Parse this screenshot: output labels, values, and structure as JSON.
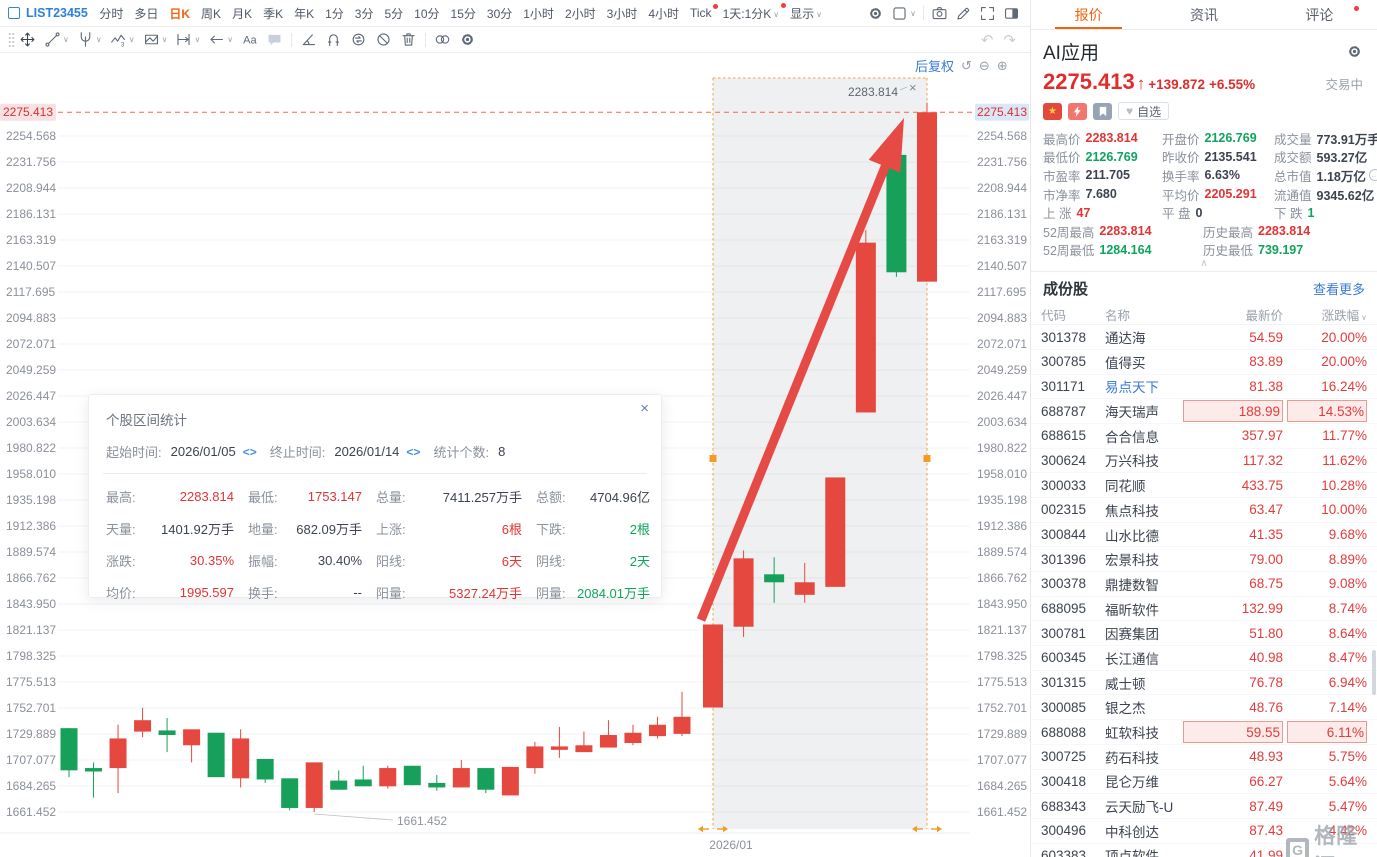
{
  "toolbar": {
    "symbol": "LIST23455",
    "timeframes": [
      {
        "label": "分时"
      },
      {
        "label": "多日"
      },
      {
        "label": "日K",
        "active": true
      },
      {
        "label": "周K"
      },
      {
        "label": "月K"
      },
      {
        "label": "季K"
      },
      {
        "label": "年K"
      },
      {
        "label": "1分"
      },
      {
        "label": "3分"
      },
      {
        "label": "5分"
      },
      {
        "label": "10分"
      },
      {
        "label": "15分"
      },
      {
        "label": "30分"
      },
      {
        "label": "1小时"
      },
      {
        "label": "2小时"
      },
      {
        "label": "3小时"
      },
      {
        "label": "4小时"
      },
      {
        "label": "Tick",
        "dot": true
      },
      {
        "label": "1天:1分K",
        "dot": true,
        "caret": true
      },
      {
        "label": "显示",
        "caret": true
      }
    ],
    "right_icons": [
      "settings",
      "layout",
      "divider",
      "camera",
      "edit",
      "fullscreen",
      "panel-right"
    ]
  },
  "drawbar": {
    "tools": [
      {
        "name": "move"
      },
      {
        "name": "trendline",
        "caret": true
      },
      {
        "name": "pitchfork",
        "caret": true
      },
      {
        "name": "wave",
        "caret": true
      },
      {
        "name": "pattern",
        "caret": true
      },
      {
        "name": "measure",
        "caret": true
      },
      {
        "name": "arrow-left",
        "caret": true
      },
      {
        "name": "text"
      },
      {
        "name": "comment"
      },
      {
        "name": "divider"
      },
      {
        "name": "angle"
      },
      {
        "name": "magnet"
      },
      {
        "name": "cycle"
      },
      {
        "name": "ban"
      },
      {
        "name": "trash"
      },
      {
        "name": "divider"
      },
      {
        "name": "rings"
      },
      {
        "name": "settings"
      }
    ]
  },
  "chart": {
    "adjust_label": "后复权",
    "current_price": "2275.413",
    "axis_ticks": [
      "2254.568",
      "2231.756",
      "2208.944",
      "2186.131",
      "2163.319",
      "2140.507",
      "2117.695",
      "2094.883",
      "2072.071",
      "2049.259",
      "2026.447",
      "2003.634",
      "1980.822",
      "1958.010",
      "1935.198",
      "1912.386",
      "1889.574",
      "1866.762",
      "1843.950",
      "1821.137",
      "1798.325",
      "1775.513",
      "1752.701",
      "1729.889",
      "1707.077",
      "1684.265",
      "1661.452"
    ],
    "colors": {
      "up": "#e5483f",
      "down": "#17a05a",
      "accent": "#f59b25",
      "price_line": "#f4694a"
    },
    "candles": [
      [
        1735,
        1735,
        1692,
        1698
      ],
      [
        1700,
        1705,
        1674,
        1697
      ],
      [
        1700,
        1738,
        1678,
        1726
      ],
      [
        1732,
        1753,
        1727,
        1742
      ],
      [
        1733,
        1744,
        1714,
        1729
      ],
      [
        1720,
        1734,
        1705,
        1734
      ],
      [
        1731,
        1731,
        1692,
        1692
      ],
      [
        1691,
        1734,
        1683,
        1726
      ],
      [
        1708,
        1708,
        1687,
        1690
      ],
      [
        1691,
        1691,
        1663,
        1665
      ],
      [
        1665,
        1705,
        1661.452,
        1705
      ],
      [
        1689,
        1698,
        1681,
        1681
      ],
      [
        1690,
        1702,
        1684,
        1684
      ],
      [
        1684,
        1702,
        1682,
        1700
      ],
      [
        1702,
        1702,
        1685,
        1685
      ],
      [
        1687,
        1694,
        1680,
        1683
      ],
      [
        1683,
        1707,
        1683,
        1700
      ],
      [
        1700,
        1700,
        1678,
        1681
      ],
      [
        1676,
        1701,
        1676,
        1701
      ],
      [
        1700,
        1723,
        1695,
        1719
      ],
      [
        1716,
        1736,
        1709,
        1719
      ],
      [
        1714,
        1732,
        1714,
        1720
      ],
      [
        1718,
        1742,
        1718,
        1729
      ],
      [
        1722,
        1738,
        1720,
        1731
      ],
      [
        1728,
        1745,
        1726,
        1738
      ],
      [
        1730,
        1767,
        1728,
        1745
      ],
      [
        1753.147,
        1826,
        1753.147,
        1826
      ],
      [
        1824,
        1891,
        1815,
        1884
      ],
      [
        1870,
        1885,
        1845,
        1863
      ],
      [
        1852,
        1880,
        1845,
        1863
      ],
      [
        1859,
        1955,
        1859,
        1955
      ],
      [
        2012,
        2172,
        2012,
        2161
      ],
      [
        2238,
        2242,
        2131,
        2135
      ],
      [
        2126.769,
        2283.814,
        2126.769,
        2275.413
      ]
    ],
    "region_bar_count": 8,
    "low_annotation": "1661.452",
    "high_annotation": "2283.814",
    "date_label": "2026/01"
  },
  "popup": {
    "title": "个股区间统计",
    "fields": [
      {
        "label": "起始时间:",
        "value": "2026/01/05",
        "nav": true
      },
      {
        "label": "终止时间:",
        "value": "2026/01/14",
        "nav": true
      },
      {
        "label": "统计个数:",
        "value": "8",
        "nav": false
      }
    ],
    "stats": [
      [
        {
          "l": "最高:",
          "v": "2283.814",
          "c": "r"
        },
        {
          "l": "最低:",
          "v": "1753.147",
          "c": "r"
        },
        {
          "l": "总量:",
          "v": "7411.257万手",
          "c": "d"
        },
        {
          "l": "总额:",
          "v": "4704.96亿",
          "c": "d"
        }
      ],
      [
        {
          "l": "天量:",
          "v": "1401.92万手",
          "c": "d"
        },
        {
          "l": "地量:",
          "v": "682.09万手",
          "c": "d"
        },
        {
          "l": "上涨:",
          "v": "6根",
          "c": "r"
        },
        {
          "l": "下跌:",
          "v": "2根",
          "c": "g"
        }
      ],
      [
        {
          "l": "涨跌:",
          "v": "30.35%",
          "c": "r"
        },
        {
          "l": "振幅:",
          "v": "30.40%",
          "c": "d"
        },
        {
          "l": "阳线:",
          "v": "6天",
          "c": "r"
        },
        {
          "l": "阴线:",
          "v": "2天",
          "c": "g"
        }
      ],
      [
        {
          "l": "均价:",
          "v": "1995.597",
          "c": "r"
        },
        {
          "l": "换手:",
          "v": "--",
          "c": "d"
        },
        {
          "l": "阳量:",
          "v": "5327.24万手",
          "c": "r"
        },
        {
          "l": "阴量:",
          "v": "2084.01万手",
          "c": "g"
        }
      ]
    ]
  },
  "panel": {
    "tabs": [
      {
        "label": "报价",
        "active": true
      },
      {
        "label": "资讯"
      },
      {
        "label": "评论",
        "dot": true
      }
    ],
    "stock": {
      "name": "AI应用",
      "price": "2275.413",
      "change": "+139.872",
      "change_pct": "+6.55%",
      "status": "交易中",
      "fav_label": "自选"
    },
    "stats": [
      [
        {
          "l": "最高价",
          "v": "2283.814",
          "c": "r"
        },
        {
          "l": "开盘价",
          "v": "2126.769",
          "c": "g"
        },
        {
          "l": "成交量",
          "v": "773.91万手",
          "c": "d"
        }
      ],
      [
        {
          "l": "最低价",
          "v": "2126.769",
          "c": "g"
        },
        {
          "l": "昨收价",
          "v": "2135.541",
          "c": "d"
        },
        {
          "l": "成交额",
          "v": "593.27亿",
          "c": "d"
        }
      ],
      [
        {
          "l": "市盈率",
          "v": "211.705",
          "c": "d"
        },
        {
          "l": "换手率",
          "v": "6.63%",
          "c": "d"
        },
        {
          "l": "总市值",
          "v": "1.18万亿",
          "c": "d",
          "more": true
        }
      ],
      [
        {
          "l": "市净率",
          "v": "7.680",
          "c": "d"
        },
        {
          "l": "平均价",
          "v": "2205.291",
          "c": "r"
        },
        {
          "l": "流通值",
          "v": "9345.62亿",
          "c": "d"
        }
      ],
      [
        {
          "l": "上 涨",
          "v": "47",
          "c": "r"
        },
        {
          "l": "平 盘",
          "v": "0",
          "c": "d"
        },
        {
          "l": "下 跌",
          "v": "1",
          "c": "g"
        }
      ]
    ],
    "extremes": [
      [
        {
          "l": "52周最高",
          "v": "2283.814",
          "c": "r"
        },
        {
          "l": "历史最高",
          "v": "2283.814",
          "c": "r"
        }
      ],
      [
        {
          "l": "52周最低",
          "v": "1284.164",
          "c": "g"
        },
        {
          "l": "历史最低",
          "v": "739.197",
          "c": "g"
        }
      ]
    ],
    "constituents": {
      "title": "成份股",
      "more_label": "查看更多",
      "columns": [
        "代码",
        "名称",
        "最新价",
        "涨跌幅"
      ],
      "rows": [
        {
          "code": "301378",
          "name": "通达海",
          "price": "54.59",
          "pct": "20.00%"
        },
        {
          "code": "300785",
          "name": "值得买",
          "price": "83.89",
          "pct": "20.00%"
        },
        {
          "code": "301171",
          "name": "易点天下",
          "price": "81.38",
          "pct": "16.24%",
          "blue": true
        },
        {
          "code": "688787",
          "name": "海天瑞声",
          "price": "188.99",
          "pct": "14.53%",
          "hl": true
        },
        {
          "code": "688615",
          "name": "合合信息",
          "price": "357.97",
          "pct": "11.77%"
        },
        {
          "code": "300624",
          "name": "万兴科技",
          "price": "117.32",
          "pct": "11.62%"
        },
        {
          "code": "300033",
          "name": "同花顺",
          "price": "433.75",
          "pct": "10.28%"
        },
        {
          "code": "002315",
          "name": "焦点科技",
          "price": "63.47",
          "pct": "10.00%"
        },
        {
          "code": "300844",
          "name": "山水比德",
          "price": "41.35",
          "pct": "9.68%"
        },
        {
          "code": "301396",
          "name": "宏景科技",
          "price": "79.00",
          "pct": "8.89%"
        },
        {
          "code": "300378",
          "name": "鼎捷数智",
          "price": "68.75",
          "pct": "9.08%"
        },
        {
          "code": "688095",
          "name": "福昕软件",
          "price": "132.99",
          "pct": "8.74%"
        },
        {
          "code": "300781",
          "name": "因赛集团",
          "price": "51.80",
          "pct": "8.64%"
        },
        {
          "code": "600345",
          "name": "长江通信",
          "price": "40.98",
          "pct": "8.47%"
        },
        {
          "code": "301315",
          "name": "威士顿",
          "price": "76.78",
          "pct": "6.94%"
        },
        {
          "code": "300085",
          "name": "银之杰",
          "price": "48.76",
          "pct": "7.14%"
        },
        {
          "code": "688088",
          "name": "虹软科技",
          "price": "59.55",
          "pct": "6.11%",
          "hl": true
        },
        {
          "code": "300725",
          "name": "药石科技",
          "price": "48.93",
          "pct": "5.75%"
        },
        {
          "code": "300418",
          "name": "昆仑万维",
          "price": "66.27",
          "pct": "5.64%"
        },
        {
          "code": "688343",
          "name": "云天励飞-U",
          "price": "87.49",
          "pct": "5.47%"
        },
        {
          "code": "300496",
          "name": "中科创达",
          "price": "87.43",
          "pct": "4.42%"
        },
        {
          "code": "603383",
          "name": "顶点软件",
          "price": "41.99",
          "pct": ""
        }
      ]
    }
  },
  "watermark": {
    "text": "格隆汇"
  }
}
